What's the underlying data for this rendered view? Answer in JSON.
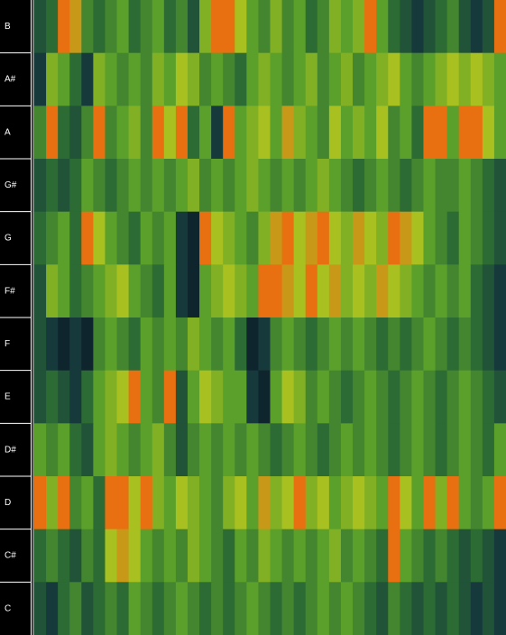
{
  "chart_data": {
    "type": "heatmap",
    "rows": [
      "B",
      "A#",
      "A",
      "G#",
      "G",
      "F#",
      "F",
      "E",
      "D#",
      "D",
      "C#",
      "C"
    ],
    "zlim": [
      0,
      1
    ],
    "colorscale": [
      "#07101f",
      "#163a3c",
      "#2c6b34",
      "#5ba02a",
      "#a8c020",
      "#e87010"
    ],
    "values": [
      [
        0.3,
        0.4,
        1,
        0.9,
        0.5,
        0.4,
        0.5,
        0.6,
        0.4,
        0.5,
        0.6,
        0.4,
        0.5,
        0.3,
        0.7,
        1,
        1,
        0.8,
        0.6,
        0.5,
        0.7,
        0.5,
        0.6,
        0.4,
        0.5,
        0.7,
        0.6,
        0.7,
        1,
        0.6,
        0.4,
        0.3,
        0.2,
        0.3,
        0.4,
        0.5,
        0.3,
        0.2,
        0.3,
        1
      ],
      [
        0.2,
        0.7,
        0.6,
        0.4,
        0.2,
        0.7,
        0.6,
        0.5,
        0.6,
        0.5,
        0.7,
        0.6,
        0.8,
        0.7,
        0.5,
        0.6,
        0.5,
        0.4,
        0.6,
        0.7,
        0.6,
        0.5,
        0.6,
        0.7,
        0.5,
        0.6,
        0.7,
        0.5,
        0.6,
        0.7,
        0.8,
        0.6,
        0.5,
        0.6,
        0.7,
        0.8,
        0.7,
        0.8,
        0.7,
        0.6
      ],
      [
        0.5,
        1,
        0.4,
        0.3,
        0.5,
        1,
        0.5,
        0.6,
        0.7,
        0.5,
        1,
        0.8,
        1,
        0.4,
        0.6,
        0.2,
        1,
        0.6,
        0.7,
        0.8,
        0.6,
        0.9,
        0.7,
        0.6,
        0.5,
        0.8,
        0.6,
        0.7,
        0.6,
        0.8,
        0.5,
        0.6,
        0.4,
        1,
        1,
        0.6,
        1,
        1,
        0.8,
        0.6
      ],
      [
        0.3,
        0.4,
        0.3,
        0.4,
        0.6,
        0.5,
        0.4,
        0.5,
        0.6,
        0.5,
        0.6,
        0.5,
        0.6,
        0.7,
        0.5,
        0.6,
        0.5,
        0.6,
        0.7,
        0.6,
        0.5,
        0.6,
        0.5,
        0.6,
        0.7,
        0.6,
        0.5,
        0.4,
        0.5,
        0.6,
        0.5,
        0.4,
        0.5,
        0.6,
        0.5,
        0.5,
        0.6,
        0.5,
        0.4,
        0.3
      ],
      [
        0.4,
        0.5,
        0.6,
        0.4,
        1,
        0.8,
        0.6,
        0.5,
        0.4,
        0.6,
        0.5,
        0.6,
        0.2,
        0.1,
        1,
        0.8,
        0.7,
        0.6,
        0.5,
        0.7,
        0.9,
        1,
        0.8,
        0.9,
        1,
        0.8,
        0.7,
        0.9,
        0.8,
        0.7,
        1,
        0.9,
        0.8,
        0.6,
        0.5,
        0.4,
        0.6,
        0.5,
        0.4,
        0.3
      ],
      [
        0.3,
        0.7,
        0.6,
        0.4,
        0.5,
        0.6,
        0.7,
        0.8,
        0.6,
        0.5,
        0.4,
        0.6,
        0.2,
        0.1,
        0.6,
        0.7,
        0.8,
        0.7,
        0.6,
        1,
        1,
        0.9,
        0.8,
        1,
        0.8,
        0.9,
        0.7,
        0.8,
        0.7,
        0.9,
        0.8,
        0.7,
        0.6,
        0.5,
        0.6,
        0.5,
        0.6,
        0.4,
        0.3,
        0.2
      ],
      [
        0.3,
        0.2,
        0.1,
        0.2,
        0.1,
        0.5,
        0.6,
        0.5,
        0.4,
        0.6,
        0.5,
        0.6,
        0.5,
        0.7,
        0.6,
        0.5,
        0.6,
        0.4,
        0.1,
        0.2,
        0.5,
        0.6,
        0.5,
        0.4,
        0.5,
        0.6,
        0.5,
        0.6,
        0.5,
        0.4,
        0.5,
        0.4,
        0.5,
        0.6,
        0.5,
        0.4,
        0.5,
        0.4,
        0.3,
        0.2
      ],
      [
        0.3,
        0.4,
        0.3,
        0.2,
        0.4,
        0.6,
        0.7,
        0.8,
        1,
        0.6,
        0.5,
        1,
        0.3,
        0.6,
        0.8,
        0.7,
        0.6,
        0.6,
        0.2,
        0.1,
        0.6,
        0.8,
        0.7,
        0.5,
        0.6,
        0.5,
        0.4,
        0.5,
        0.6,
        0.5,
        0.4,
        0.5,
        0.6,
        0.5,
        0.4,
        0.5,
        0.6,
        0.5,
        0.4,
        0.3
      ],
      [
        0.6,
        0.5,
        0.6,
        0.4,
        0.3,
        0.6,
        0.7,
        0.6,
        0.5,
        0.6,
        0.7,
        0.5,
        0.3,
        0.5,
        0.6,
        0.5,
        0.6,
        0.5,
        0.6,
        0.5,
        0.4,
        0.5,
        0.6,
        0.5,
        0.4,
        0.5,
        0.6,
        0.5,
        0.6,
        0.5,
        0.4,
        0.5,
        0.6,
        0.5,
        0.4,
        0.5,
        0.6,
        0.5,
        0.4,
        0.6
      ],
      [
        1,
        0.7,
        1,
        0.5,
        0.6,
        0.4,
        1,
        1,
        0.8,
        1,
        0.7,
        0.6,
        0.8,
        0.7,
        0.6,
        0.5,
        0.7,
        0.8,
        0.6,
        0.9,
        0.7,
        0.8,
        1,
        0.7,
        0.8,
        0.6,
        0.7,
        0.8,
        0.7,
        0.6,
        1,
        0.8,
        0.6,
        1,
        0.7,
        1,
        0.6,
        0.5,
        0.6,
        1
      ],
      [
        0.4,
        0.5,
        0.4,
        0.3,
        0.5,
        0.4,
        0.8,
        0.9,
        0.8,
        0.6,
        0.5,
        0.6,
        0.5,
        0.7,
        0.6,
        0.5,
        0.4,
        0.6,
        0.5,
        0.7,
        0.6,
        0.5,
        0.6,
        0.5,
        0.6,
        0.7,
        0.5,
        0.6,
        0.5,
        0.4,
        1,
        0.6,
        0.5,
        0.4,
        0.5,
        0.4,
        0.3,
        0.4,
        0.3,
        0.2
      ],
      [
        0.3,
        0.2,
        0.4,
        0.5,
        0.3,
        0.4,
        0.5,
        0.4,
        0.6,
        0.5,
        0.4,
        0.5,
        0.6,
        0.5,
        0.4,
        0.5,
        0.4,
        0.5,
        0.6,
        0.5,
        0.4,
        0.5,
        0.4,
        0.5,
        0.6,
        0.5,
        0.6,
        0.5,
        0.4,
        0.3,
        0.5,
        0.4,
        0.3,
        0.4,
        0.3,
        0.4,
        0.3,
        0.2,
        0.3,
        0.2
      ]
    ]
  }
}
